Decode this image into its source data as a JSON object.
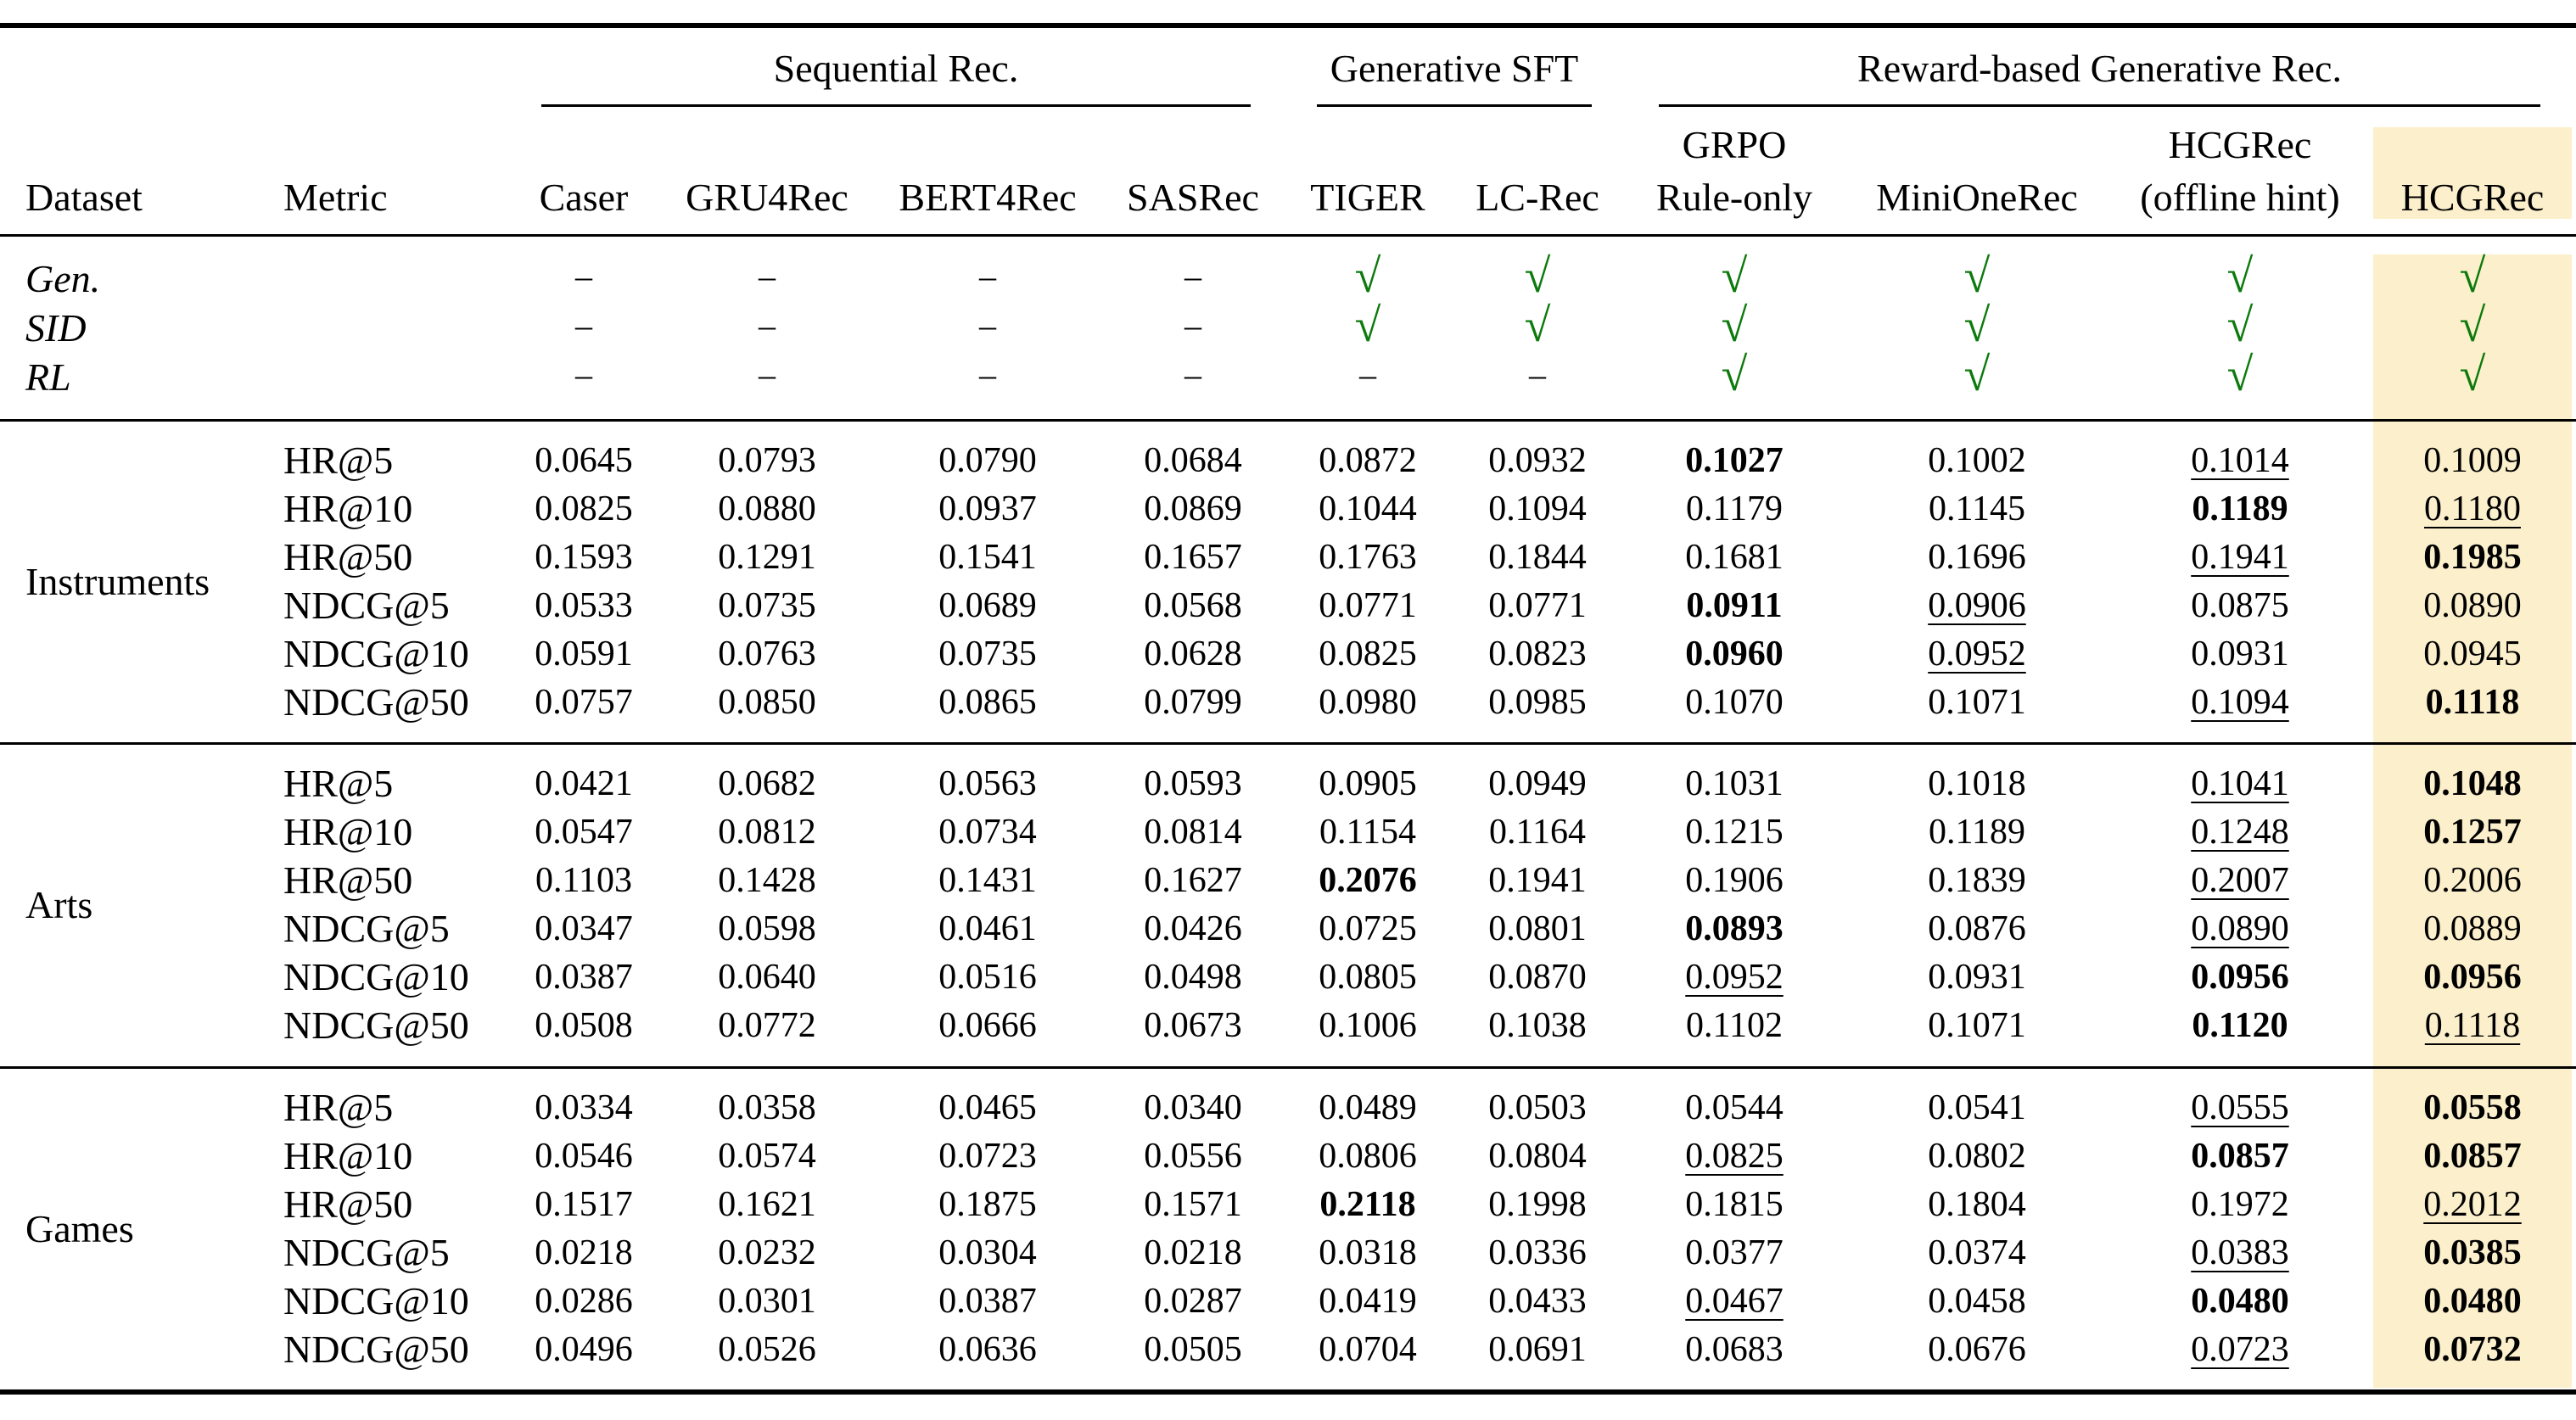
{
  "groups": [
    "Sequential Rec.",
    "Generative SFT",
    "Reward-based Generative Rec."
  ],
  "header": {
    "dataset": "Dataset",
    "metric": "Metric",
    "methods": [
      [
        "Caser"
      ],
      [
        "GRU4Rec"
      ],
      [
        "BERT4Rec"
      ],
      [
        "SASRec"
      ],
      [
        "TIGER"
      ],
      [
        "LC-Rec"
      ],
      [
        "GRPO",
        "Rule-only"
      ],
      [
        "MiniOneRec"
      ],
      [
        "HCGRec",
        "(offline hint)"
      ],
      [
        "HCGRec"
      ]
    ]
  },
  "properties": [
    {
      "label": "Gen.",
      "marks": [
        "–",
        "–",
        "–",
        "–",
        "√",
        "√",
        "√",
        "√",
        "√",
        "√"
      ]
    },
    {
      "label": "SID",
      "marks": [
        "–",
        "–",
        "–",
        "–",
        "√",
        "√",
        "√",
        "√",
        "√",
        "√"
      ]
    },
    {
      "label": "RL",
      "marks": [
        "–",
        "–",
        "–",
        "–",
        "–",
        "–",
        "√",
        "√",
        "√",
        "√"
      ]
    }
  ],
  "sections": [
    {
      "dataset": "Instruments",
      "rows": [
        {
          "metric": "HR@5",
          "values": [
            "0.0645",
            "0.0793",
            "0.0790",
            "0.0684",
            "0.0872",
            "0.0932",
            "0.1027",
            "0.1002",
            "0.1014",
            "0.1009"
          ],
          "bold": [
            6
          ],
          "underline": [
            8
          ]
        },
        {
          "metric": "HR@10",
          "values": [
            "0.0825",
            "0.0880",
            "0.0937",
            "0.0869",
            "0.1044",
            "0.1094",
            "0.1179",
            "0.1145",
            "0.1189",
            "0.1180"
          ],
          "bold": [
            8
          ],
          "underline": [
            9
          ]
        },
        {
          "metric": "HR@50",
          "values": [
            "0.1593",
            "0.1291",
            "0.1541",
            "0.1657",
            "0.1763",
            "0.1844",
            "0.1681",
            "0.1696",
            "0.1941",
            "0.1985"
          ],
          "bold": [
            9
          ],
          "underline": [
            8
          ]
        },
        {
          "metric": "NDCG@5",
          "values": [
            "0.0533",
            "0.0735",
            "0.0689",
            "0.0568",
            "0.0771",
            "0.0771",
            "0.0911",
            "0.0906",
            "0.0875",
            "0.0890"
          ],
          "bold": [
            6
          ],
          "underline": [
            7
          ]
        },
        {
          "metric": "NDCG@10",
          "values": [
            "0.0591",
            "0.0763",
            "0.0735",
            "0.0628",
            "0.0825",
            "0.0823",
            "0.0960",
            "0.0952",
            "0.0931",
            "0.0945"
          ],
          "bold": [
            6
          ],
          "underline": [
            7
          ]
        },
        {
          "metric": "NDCG@50",
          "values": [
            "0.0757",
            "0.0850",
            "0.0865",
            "0.0799",
            "0.0980",
            "0.0985",
            "0.1070",
            "0.1071",
            "0.1094",
            "0.1118"
          ],
          "bold": [
            9
          ],
          "underline": [
            8
          ]
        }
      ]
    },
    {
      "dataset": "Arts",
      "rows": [
        {
          "metric": "HR@5",
          "values": [
            "0.0421",
            "0.0682",
            "0.0563",
            "0.0593",
            "0.0905",
            "0.0949",
            "0.1031",
            "0.1018",
            "0.1041",
            "0.1048"
          ],
          "bold": [
            9
          ],
          "underline": [
            8
          ]
        },
        {
          "metric": "HR@10",
          "values": [
            "0.0547",
            "0.0812",
            "0.0734",
            "0.0814",
            "0.1154",
            "0.1164",
            "0.1215",
            "0.1189",
            "0.1248",
            "0.1257"
          ],
          "bold": [
            9
          ],
          "underline": [
            8
          ]
        },
        {
          "metric": "HR@50",
          "values": [
            "0.1103",
            "0.1428",
            "0.1431",
            "0.1627",
            "0.2076",
            "0.1941",
            "0.1906",
            "0.1839",
            "0.2007",
            "0.2006"
          ],
          "bold": [
            4
          ],
          "underline": [
            8
          ]
        },
        {
          "metric": "NDCG@5",
          "values": [
            "0.0347",
            "0.0598",
            "0.0461",
            "0.0426",
            "0.0725",
            "0.0801",
            "0.0893",
            "0.0876",
            "0.0890",
            "0.0889"
          ],
          "bold": [
            6
          ],
          "underline": [
            8
          ]
        },
        {
          "metric": "NDCG@10",
          "values": [
            "0.0387",
            "0.0640",
            "0.0516",
            "0.0498",
            "0.0805",
            "0.0870",
            "0.0952",
            "0.0931",
            "0.0956",
            "0.0956"
          ],
          "bold": [
            8,
            9
          ],
          "underline": [
            6
          ]
        },
        {
          "metric": "NDCG@50",
          "values": [
            "0.0508",
            "0.0772",
            "0.0666",
            "0.0673",
            "0.1006",
            "0.1038",
            "0.1102",
            "0.1071",
            "0.1120",
            "0.1118"
          ],
          "bold": [
            8
          ],
          "underline": [
            9
          ]
        }
      ]
    },
    {
      "dataset": "Games",
      "rows": [
        {
          "metric": "HR@5",
          "values": [
            "0.0334",
            "0.0358",
            "0.0465",
            "0.0340",
            "0.0489",
            "0.0503",
            "0.0544",
            "0.0541",
            "0.0555",
            "0.0558"
          ],
          "bold": [
            9
          ],
          "underline": [
            8
          ]
        },
        {
          "metric": "HR@10",
          "values": [
            "0.0546",
            "0.0574",
            "0.0723",
            "0.0556",
            "0.0806",
            "0.0804",
            "0.0825",
            "0.0802",
            "0.0857",
            "0.0857"
          ],
          "bold": [
            8,
            9
          ],
          "underline": [
            6
          ]
        },
        {
          "metric": "HR@50",
          "values": [
            "0.1517",
            "0.1621",
            "0.1875",
            "0.1571",
            "0.2118",
            "0.1998",
            "0.1815",
            "0.1804",
            "0.1972",
            "0.2012"
          ],
          "bold": [
            4
          ],
          "underline": [
            9
          ]
        },
        {
          "metric": "NDCG@5",
          "values": [
            "0.0218",
            "0.0232",
            "0.0304",
            "0.0218",
            "0.0318",
            "0.0336",
            "0.0377",
            "0.0374",
            "0.0383",
            "0.0385"
          ],
          "bold": [
            9
          ],
          "underline": [
            8
          ]
        },
        {
          "metric": "NDCG@10",
          "values": [
            "0.0286",
            "0.0301",
            "0.0387",
            "0.0287",
            "0.0419",
            "0.0433",
            "0.0467",
            "0.0458",
            "0.0480",
            "0.0480"
          ],
          "bold": [
            8,
            9
          ],
          "underline": [
            6
          ]
        },
        {
          "metric": "NDCG@50",
          "values": [
            "0.0496",
            "0.0526",
            "0.0636",
            "0.0505",
            "0.0704",
            "0.0691",
            "0.0683",
            "0.0676",
            "0.0723",
            "0.0732"
          ],
          "bold": [
            9
          ],
          "underline": [
            8
          ]
        }
      ]
    }
  ],
  "colors": {
    "highlight": "#fcefcb",
    "check": "#0d7a0d"
  }
}
